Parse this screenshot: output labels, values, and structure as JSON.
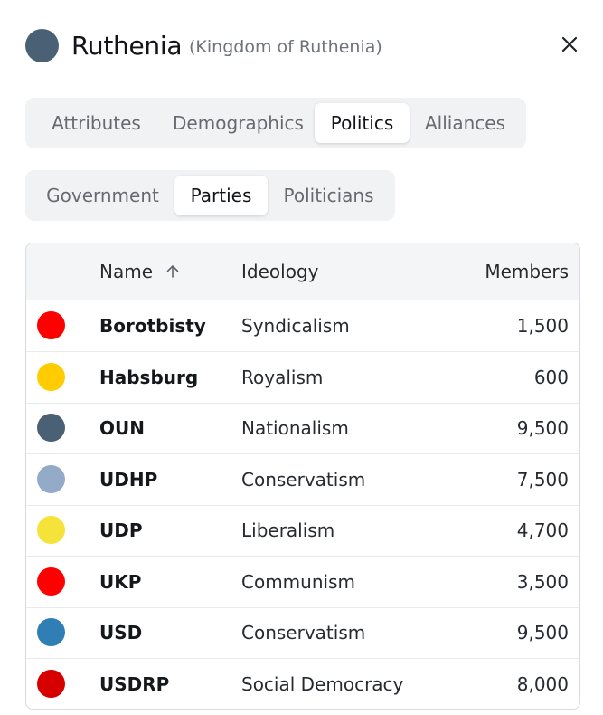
{
  "header": {
    "name": "Ruthenia",
    "subtitle": "(Kingdom of Ruthenia)",
    "flag_color": "#4a6074"
  },
  "icons": {
    "close": "close-icon",
    "sort": "arrow-up-icon"
  },
  "main_tabs": [
    {
      "label": "Attributes",
      "active": false
    },
    {
      "label": "Demographics",
      "active": false
    },
    {
      "label": "Politics",
      "active": true
    },
    {
      "label": "Alliances",
      "active": false
    }
  ],
  "sub_tabs": [
    {
      "label": "Government",
      "active": false
    },
    {
      "label": "Parties",
      "active": true
    },
    {
      "label": "Politicians",
      "active": false
    }
  ],
  "table": {
    "columns": {
      "name": "Name",
      "ideology": "Ideology",
      "members": "Members"
    },
    "sort": {
      "column": "name",
      "direction": "ascending"
    },
    "rows": [
      {
        "color": "#ff0000",
        "name": "Borotbisty",
        "ideology": "Syndicalism",
        "members": "1,500"
      },
      {
        "color": "#ffcc00",
        "name": "Habsburg",
        "ideology": "Royalism",
        "members": "600"
      },
      {
        "color": "#4a6074",
        "name": "OUN",
        "ideology": "Nationalism",
        "members": "9,500"
      },
      {
        "color": "#93abc9",
        "name": "UDHP",
        "ideology": "Conservatism",
        "members": "7,500"
      },
      {
        "color": "#f5e33a",
        "name": "UDP",
        "ideology": "Liberalism",
        "members": "4,700"
      },
      {
        "color": "#ff0000",
        "name": "UKP",
        "ideology": "Communism",
        "members": "3,500"
      },
      {
        "color": "#2f7fb5",
        "name": "USD",
        "ideology": "Conservatism",
        "members": "9,500"
      },
      {
        "color": "#d60000",
        "name": "USDRP",
        "ideology": "Social Democracy",
        "members": "8,000"
      }
    ]
  }
}
